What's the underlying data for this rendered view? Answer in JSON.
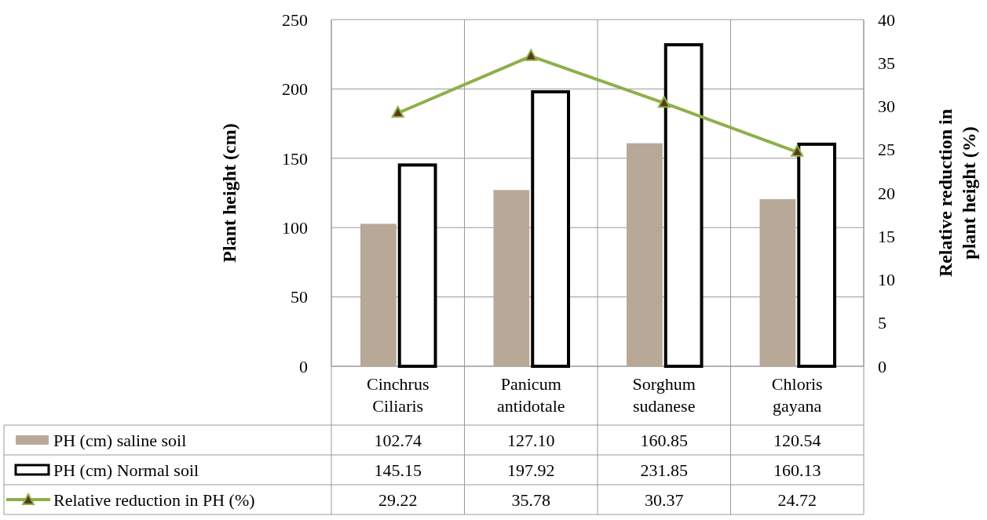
{
  "chart_data": {
    "type": "bar",
    "ylabel": "Plant height (cm)",
    "y2label": "Relative reduction in plant height (%)",
    "categories": [
      "Cinchrus Ciliaris",
      "Panicum antidotale",
      "Sorghum sudanese",
      "Chloris gayana"
    ],
    "series": [
      {
        "name": "PH (cm) saline soil",
        "color": "#b8a898",
        "values": [
          102.74,
          127.1,
          160.85,
          120.54
        ],
        "value_labels": [
          "102.74",
          "127.10",
          "160.85",
          "120.54"
        ]
      },
      {
        "name": "PH (cm) Normal soil",
        "color": "#ffffff",
        "values": [
          145.15,
          197.92,
          231.85,
          160.13
        ],
        "value_labels": [
          "145.15",
          "197.92",
          "231.85",
          "160.13"
        ]
      },
      {
        "name": "Relative reduction in PH (%)",
        "type": "line",
        "axis": "y2",
        "color": "#8db04a",
        "marker": "triangle",
        "values": [
          29.22,
          35.78,
          30.37,
          24.72
        ],
        "value_labels": [
          "29.22",
          "35.78",
          "30.37",
          "24.72"
        ]
      }
    ],
    "ylim": [
      0,
      250
    ],
    "yticks": [
      0,
      50,
      100,
      150,
      200,
      250
    ],
    "y2lim": [
      0,
      40
    ],
    "y2ticks": [
      0,
      5,
      10,
      15,
      20,
      25,
      30,
      35,
      40
    ],
    "grid": true,
    "legend": "bottom"
  }
}
